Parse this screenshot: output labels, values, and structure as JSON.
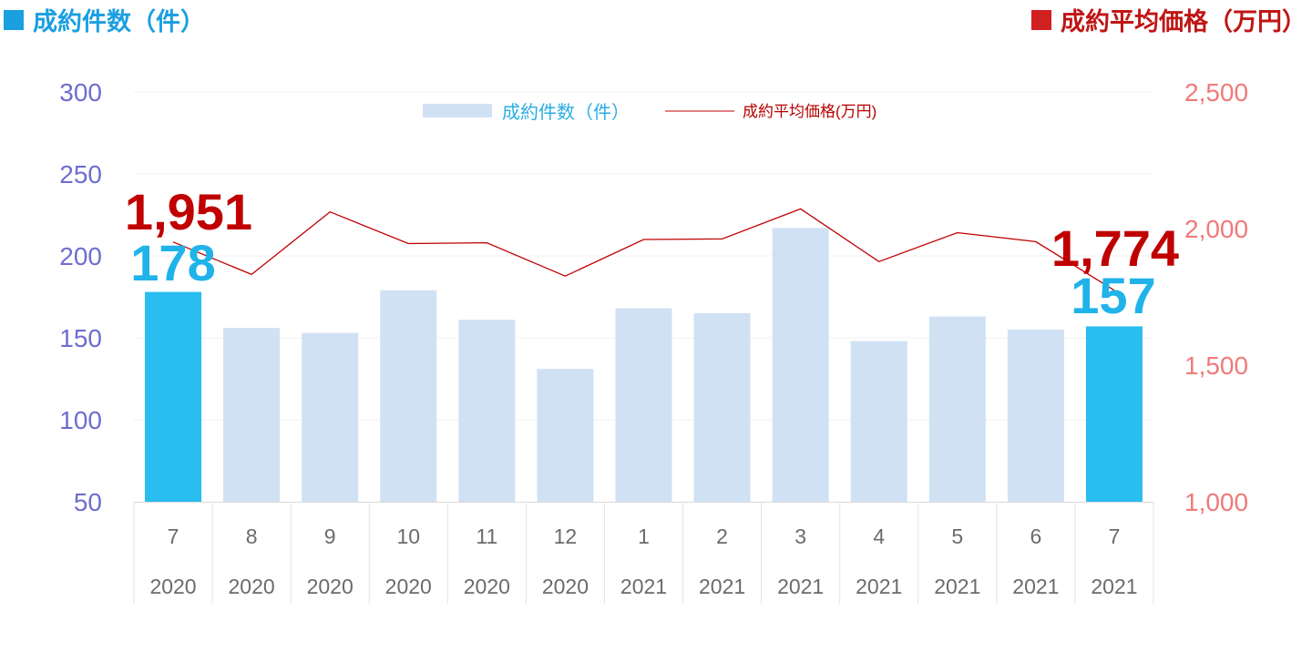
{
  "header": {
    "left_title": "成約件数（件）",
    "right_title": "成約平均価格（万円）"
  },
  "colors": {
    "bar_normal": "#d0e1f4",
    "bar_highlight": "#29bdf0",
    "line": "#c00000",
    "left_axis_text": "#6e6ecf",
    "right_axis_text": "#f07a7a"
  },
  "chart_data": {
    "type": "bar",
    "categories": [
      "7",
      "8",
      "9",
      "10",
      "11",
      "12",
      "1",
      "2",
      "3",
      "4",
      "5",
      "6",
      "7"
    ],
    "category_years": [
      "2020",
      "2020",
      "2020",
      "2020",
      "2020",
      "2020",
      "2021",
      "2021",
      "2021",
      "2021",
      "2021",
      "2021",
      "2021"
    ],
    "series": [
      {
        "name": "成約件数（件）",
        "type": "bar",
        "axis": "left",
        "values": [
          178,
          156,
          153,
          179,
          161,
          131,
          168,
          165,
          217,
          148,
          163,
          155,
          157
        ],
        "highlight_indices": [
          0,
          12
        ]
      },
      {
        "name": "成約平均価格(万円)",
        "type": "line",
        "axis": "right",
        "values": [
          1951,
          1832,
          2061,
          1945,
          1948,
          1826,
          1960,
          1962,
          2072,
          1879,
          1985,
          1952,
          1774
        ]
      }
    ],
    "left_axis": {
      "ylim": [
        50,
        300
      ],
      "ticks": [
        "50",
        "100",
        "150",
        "200",
        "250",
        "300"
      ]
    },
    "right_axis": {
      "ylim": [
        1000,
        2500
      ],
      "ticks": [
        "1,000",
        "1,500",
        "2,000",
        "2,500"
      ]
    },
    "callouts": {
      "first_price": "1,951",
      "first_count": "178",
      "last_price": "1,774",
      "last_count": "157"
    },
    "legend_position": "top-center",
    "grid": true
  }
}
